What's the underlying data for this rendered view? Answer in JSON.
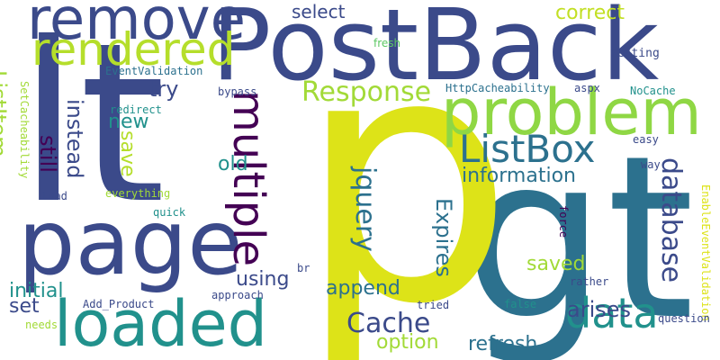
{
  "colors": {
    "background": "#ffffff",
    "palette": [
      "#440154",
      "#3b518b",
      "#2c718e",
      "#21918c",
      "#27ad81",
      "#5cc863",
      "#aadc32",
      "#dde318"
    ]
  },
  "words": [
    {
      "key": "gt",
      "text": "gt",
      "color": "#2c718e"
    },
    {
      "key": "lt",
      "text": "lt",
      "color": "#3b4a8a"
    },
    {
      "key": "p",
      "text": "p",
      "color": "#dde318"
    },
    {
      "key": "postback",
      "text": "PostBack",
      "color": "#3b4a8a"
    },
    {
      "key": "remove",
      "text": "remove",
      "color": "#3b4a8a"
    },
    {
      "key": "rendered",
      "text": "rendered",
      "color": "#b5de2b"
    },
    {
      "key": "page",
      "text": "page",
      "color": "#3b4a8a"
    },
    {
      "key": "loaded",
      "text": "loaded",
      "color": "#21918c"
    },
    {
      "key": "problem",
      "text": "problem",
      "color": "#8fd744"
    },
    {
      "key": "multiple",
      "text": "multiple",
      "color": "#440154"
    },
    {
      "key": "response",
      "text": "Response",
      "color": "#a2da37"
    },
    {
      "key": "listbox",
      "text": "ListBox",
      "color": "#2c718e"
    },
    {
      "key": "database",
      "text": "database",
      "color": "#3b4a8a"
    },
    {
      "key": "data",
      "text": "data",
      "color": "#21918c"
    },
    {
      "key": "cache",
      "text": "Cache",
      "color": "#3b4a8a"
    },
    {
      "key": "information",
      "text": "information",
      "color": "#2c718e"
    },
    {
      "key": "jquery",
      "text": "jquery",
      "color": "#2c718e"
    },
    {
      "key": "expires",
      "text": "Expires",
      "color": "#2c718e"
    },
    {
      "key": "append",
      "text": "append",
      "color": "#2c718e"
    },
    {
      "key": "arises",
      "text": "arises",
      "color": "#3b4a8a"
    },
    {
      "key": "saved",
      "text": "saved",
      "color": "#a2da37"
    },
    {
      "key": "option",
      "text": "option",
      "color": "#a2da37"
    },
    {
      "key": "refresh",
      "text": "refresh",
      "color": "#2c718e"
    },
    {
      "key": "select",
      "text": "select",
      "color": "#3b4a8a"
    },
    {
      "key": "correct",
      "text": "correct",
      "color": "#c2df23"
    },
    {
      "key": "try",
      "text": "try",
      "color": "#3b4a8a"
    },
    {
      "key": "still",
      "text": "still",
      "color": "#440154"
    },
    {
      "key": "instead",
      "text": "instead",
      "color": "#3b4a8a"
    },
    {
      "key": "new",
      "text": "new",
      "color": "#21918c"
    },
    {
      "key": "save",
      "text": "save",
      "color": "#b5de2b"
    },
    {
      "key": "old",
      "text": "old",
      "color": "#21918c"
    },
    {
      "key": "listitem",
      "text": "ListItem",
      "color": "#a2da37"
    },
    {
      "key": "using",
      "text": "using",
      "color": "#3b4a8a"
    },
    {
      "key": "initial",
      "text": "initial",
      "color": "#21918c"
    },
    {
      "key": "set",
      "text": "set",
      "color": "#3b4a8a"
    },
    {
      "key": "fresh",
      "text": "fresh",
      "color": "#5cc863"
    },
    {
      "key": "eventvalidation",
      "text": "EventValidation",
      "color": "#2c718e"
    },
    {
      "key": "setting",
      "text": "setting",
      "color": "#3b4a8a"
    },
    {
      "key": "bypass",
      "text": "bypass",
      "color": "#3b4a8a"
    },
    {
      "key": "httpcacheability",
      "text": "HttpCacheability",
      "color": "#2c718e"
    },
    {
      "key": "aspx",
      "text": "aspx",
      "color": "#3b4a8a"
    },
    {
      "key": "nocache",
      "text": "NoCache",
      "color": "#21918c"
    },
    {
      "key": "redirect",
      "text": "redirect",
      "color": "#21918c"
    },
    {
      "key": "setcacheability",
      "text": "SetCacheability",
      "color": "#a2da37"
    },
    {
      "key": "load",
      "text": "load",
      "color": "#3b4a8a"
    },
    {
      "key": "everything",
      "text": "everything",
      "color": "#a2da37"
    },
    {
      "key": "quick",
      "text": "quick",
      "color": "#21918c"
    },
    {
      "key": "easy",
      "text": "easy",
      "color": "#3b4a8a"
    },
    {
      "key": "way",
      "text": "way",
      "color": "#3b4a8a"
    },
    {
      "key": "enableeventvalidation",
      "text": "EnableEventValidation",
      "color": "#dde318"
    },
    {
      "key": "force",
      "text": "force",
      "color": "#440154"
    },
    {
      "key": "br",
      "text": "br",
      "color": "#3b4a8a"
    },
    {
      "key": "approach",
      "text": "approach",
      "color": "#3b4a8a"
    },
    {
      "key": "add_product",
      "text": "Add_Product",
      "color": "#3b4a8a"
    },
    {
      "key": "tried",
      "text": "tried",
      "color": "#3b4a8a"
    },
    {
      "key": "rather",
      "text": "rather",
      "color": "#3b4a8a"
    },
    {
      "key": "false",
      "text": "false",
      "color": "#21918c"
    },
    {
      "key": "needs",
      "text": "needs",
      "color": "#a2da37"
    },
    {
      "key": "question",
      "text": "question",
      "color": "#3b4a8a"
    }
  ]
}
